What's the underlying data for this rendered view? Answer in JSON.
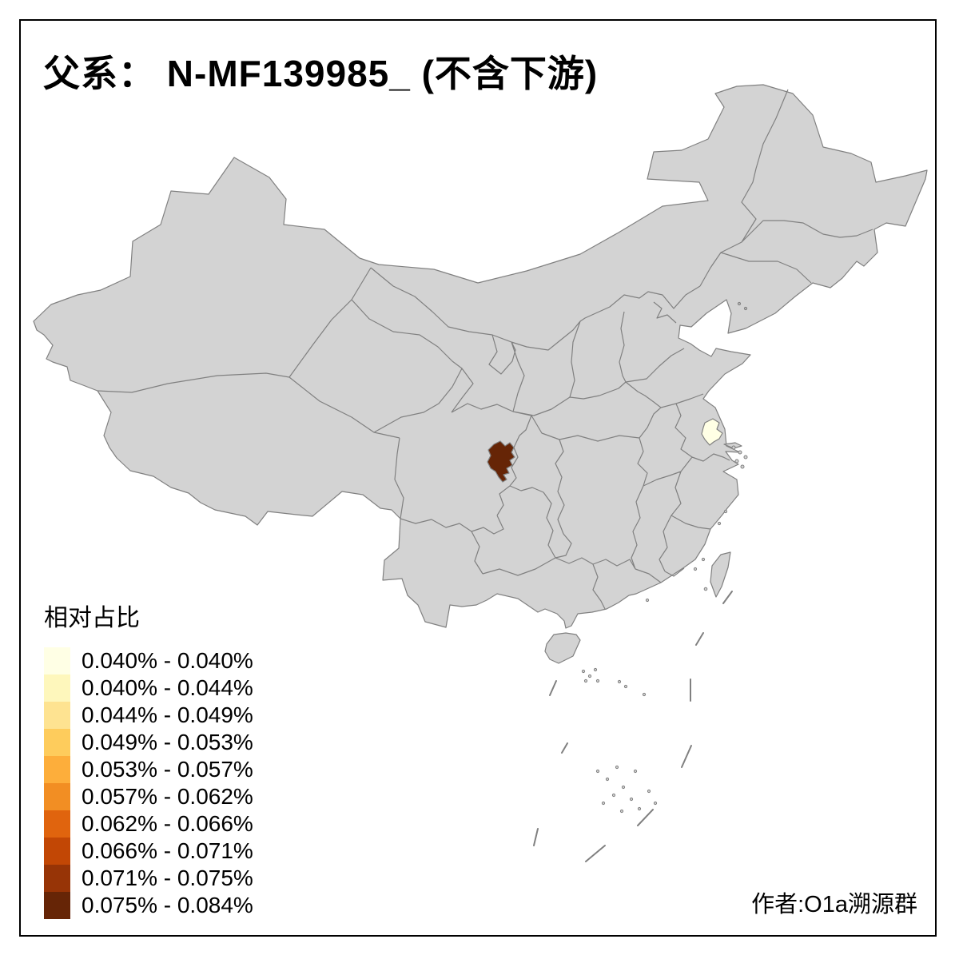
{
  "title": "父系： N-MF139985_ (不含下游)",
  "credit": "作者:O1a溯源群",
  "legend": {
    "title": "相对占比",
    "classes": [
      {
        "label": "0.040% - 0.040%",
        "color": "#FFFFE5"
      },
      {
        "label": "0.040% - 0.044%",
        "color": "#FEF7BC"
      },
      {
        "label": "0.044% - 0.049%",
        "color": "#FEE391"
      },
      {
        "label": "0.049% - 0.053%",
        "color": "#FECC5C"
      },
      {
        "label": "0.053% - 0.057%",
        "color": "#FDAE3B"
      },
      {
        "label": "0.057% - 0.062%",
        "color": "#F28E23"
      },
      {
        "label": "0.062% - 0.066%",
        "color": "#E0640E"
      },
      {
        "label": "0.066% - 0.071%",
        "color": "#C24705"
      },
      {
        "label": "0.071% - 0.075%",
        "color": "#973406"
      },
      {
        "label": "0.075% - 0.084%",
        "color": "#662506"
      }
    ]
  },
  "map": {
    "background_color": "#FFFFFF",
    "land_color": "#D3D3D3",
    "border_color": "#808080",
    "frame_color": "#000000",
    "regions": [
      {
        "id": "sichuan-basin-prefecture",
        "color": "#662506",
        "legend_class": "0.075% - 0.084%"
      },
      {
        "id": "yangtze-delta-prefecture",
        "color": "#FFFFE5",
        "legend_class": "0.040% - 0.040%"
      }
    ]
  }
}
